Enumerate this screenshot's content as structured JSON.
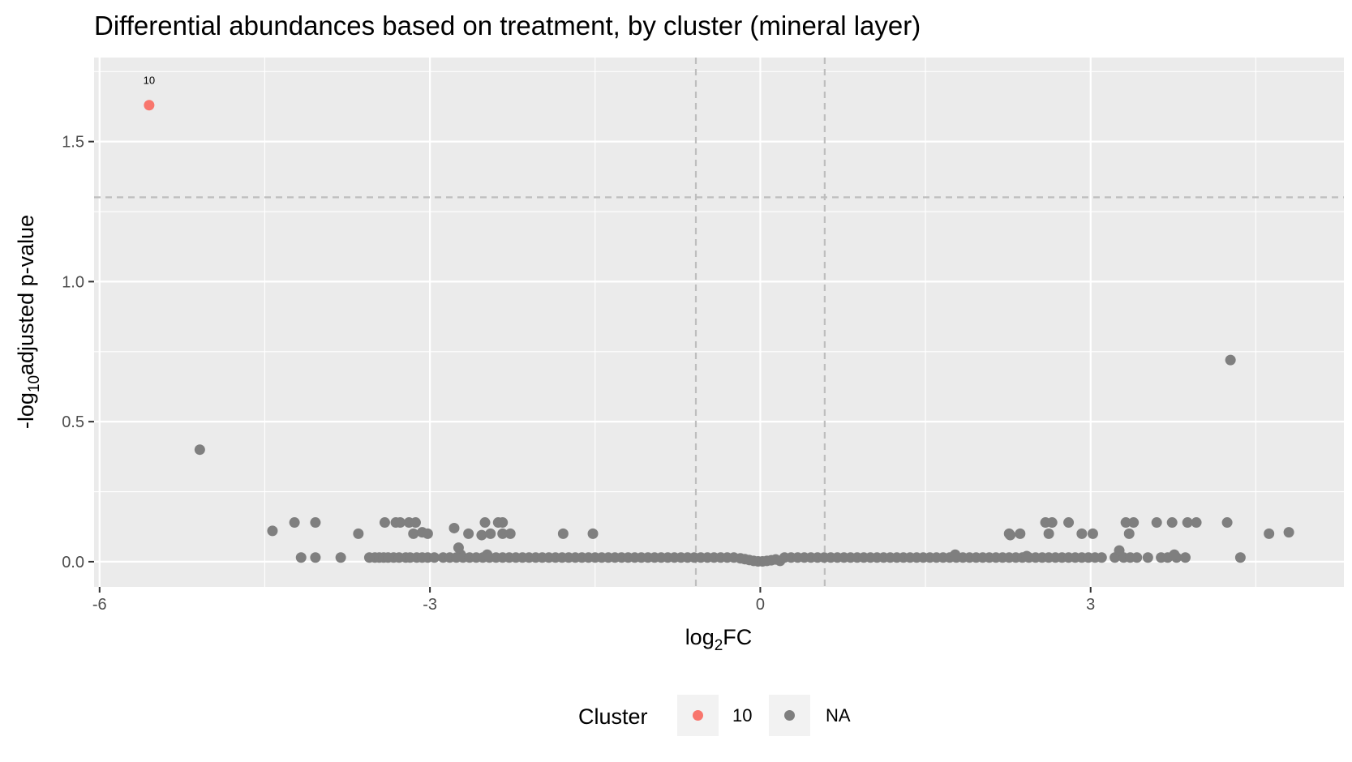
{
  "chart_data": {
    "type": "scatter",
    "title": "Differential abundances based on treatment, by cluster (mineral layer)",
    "xlabel": {
      "prefix": "log",
      "sub": "2",
      "suffix": "FC"
    },
    "ylabel": {
      "prefix": "-log",
      "sub": "10",
      "suffix": "adjusted p-value"
    },
    "xlim": [
      -6.05,
      5.3
    ],
    "ylim": [
      -0.09,
      1.8
    ],
    "x_ticks": [
      -6,
      -3,
      0,
      3
    ],
    "x_tick_labels": [
      "-6",
      "-3",
      "0",
      "3"
    ],
    "y_ticks": [
      0,
      0.5,
      1,
      1.5
    ],
    "y_tick_labels": [
      "0.0",
      "0.5",
      "1.0",
      "1.5"
    ],
    "grid": true,
    "reference_lines": {
      "x": [
        -0.585,
        0.585
      ],
      "y": [
        1.301
      ]
    },
    "legend": {
      "title": "Cluster",
      "position": "bottom",
      "entries": [
        {
          "label": "10",
          "color": "#F8766D"
        },
        {
          "label": "NA",
          "color": "#7F7F7F"
        }
      ]
    },
    "series": [
      {
        "name": "10",
        "color": "#F8766D",
        "points": [
          {
            "x": -5.55,
            "y": 1.63,
            "label": "10"
          }
        ]
      },
      {
        "name": "NA",
        "color": "#7F7F7F",
        "points": [
          [
            -5.09,
            0.4
          ],
          [
            4.27,
            0.72
          ],
          [
            -4.43,
            0.11
          ],
          [
            -4.23,
            0.14
          ],
          [
            -4.04,
            0.14
          ],
          [
            -4.17,
            0.015
          ],
          [
            -4.04,
            0.015
          ],
          [
            -3.81,
            0.015
          ],
          [
            -3.65,
            0.1
          ],
          [
            -3.41,
            0.14
          ],
          [
            -3.31,
            0.14
          ],
          [
            -3.27,
            0.14
          ],
          [
            -3.19,
            0.14
          ],
          [
            -3.13,
            0.14
          ],
          [
            -3.15,
            0.1
          ],
          [
            -3.07,
            0.105
          ],
          [
            -3.02,
            0.1
          ],
          [
            -2.78,
            0.12
          ],
          [
            -2.74,
            0.05
          ],
          [
            -2.65,
            0.1
          ],
          [
            -2.53,
            0.095
          ],
          [
            -2.5,
            0.14
          ],
          [
            -2.45,
            0.1
          ],
          [
            -2.38,
            0.14
          ],
          [
            -2.34,
            0.14
          ],
          [
            -2.34,
            0.1
          ],
          [
            -2.27,
            0.1
          ],
          [
            -1.79,
            0.1
          ],
          [
            -1.52,
            0.1
          ],
          [
            -2.72,
            0.025
          ],
          [
            -2.48,
            0.025
          ],
          [
            -3.55,
            0.015
          ],
          [
            -3.5,
            0.015
          ],
          [
            -3.46,
            0.015
          ],
          [
            -3.42,
            0.015
          ],
          [
            -3.38,
            0.015
          ],
          [
            -3.33,
            0.015
          ],
          [
            -3.28,
            0.015
          ],
          [
            -3.22,
            0.015
          ],
          [
            -3.18,
            0.015
          ],
          [
            -3.12,
            0.015
          ],
          [
            -3.07,
            0.015
          ],
          [
            -3.02,
            0.015
          ],
          [
            -2.96,
            0.015
          ],
          [
            -2.88,
            0.015
          ],
          [
            -2.82,
            0.015
          ],
          [
            -2.76,
            0.015
          ],
          [
            -2.7,
            0.015
          ],
          [
            -2.64,
            0.015
          ],
          [
            -2.58,
            0.015
          ],
          [
            -2.52,
            0.015
          ],
          [
            -2.46,
            0.015
          ],
          [
            -2.4,
            0.015
          ],
          [
            -2.34,
            0.015
          ],
          [
            -2.28,
            0.015
          ],
          [
            -2.22,
            0.015
          ],
          [
            -2.16,
            0.015
          ],
          [
            -2.1,
            0.015
          ],
          [
            -2.04,
            0.015
          ],
          [
            -1.98,
            0.015
          ],
          [
            -1.92,
            0.015
          ],
          [
            -1.86,
            0.015
          ],
          [
            -1.8,
            0.015
          ],
          [
            -1.74,
            0.015
          ],
          [
            -1.68,
            0.015
          ],
          [
            -1.62,
            0.015
          ],
          [
            -1.56,
            0.015
          ],
          [
            -1.5,
            0.015
          ],
          [
            -1.44,
            0.015
          ],
          [
            -1.38,
            0.015
          ],
          [
            -1.32,
            0.015
          ],
          [
            -1.26,
            0.015
          ],
          [
            -1.2,
            0.015
          ],
          [
            -1.14,
            0.015
          ],
          [
            -1.08,
            0.015
          ],
          [
            -1.02,
            0.015
          ],
          [
            -0.96,
            0.015
          ],
          [
            -0.9,
            0.015
          ],
          [
            -0.84,
            0.015
          ],
          [
            -0.78,
            0.015
          ],
          [
            -0.72,
            0.015
          ],
          [
            -0.66,
            0.015
          ],
          [
            -0.6,
            0.015
          ],
          [
            -0.54,
            0.015
          ],
          [
            -0.48,
            0.015
          ],
          [
            -0.42,
            0.015
          ],
          [
            -0.36,
            0.015
          ],
          [
            -0.3,
            0.015
          ],
          [
            -0.24,
            0.015
          ],
          [
            -0.18,
            0.012
          ],
          [
            -0.14,
            0.009
          ],
          [
            -0.1,
            0.006
          ],
          [
            -0.06,
            0.003
          ],
          [
            -0.02,
            0.001
          ],
          [
            0.02,
            0.001
          ],
          [
            0.06,
            0.003
          ],
          [
            0.1,
            0.005
          ],
          [
            0.14,
            0.008
          ],
          [
            0.18,
            0.003
          ],
          [
            0.22,
            0.015
          ],
          [
            0.28,
            0.015
          ],
          [
            0.34,
            0.015
          ],
          [
            0.4,
            0.015
          ],
          [
            0.46,
            0.015
          ],
          [
            0.52,
            0.015
          ],
          [
            0.58,
            0.015
          ],
          [
            0.64,
            0.015
          ],
          [
            0.7,
            0.015
          ],
          [
            0.76,
            0.015
          ],
          [
            0.82,
            0.015
          ],
          [
            0.88,
            0.015
          ],
          [
            0.94,
            0.015
          ],
          [
            1.0,
            0.015
          ],
          [
            1.06,
            0.015
          ],
          [
            1.12,
            0.015
          ],
          [
            1.18,
            0.015
          ],
          [
            1.24,
            0.015
          ],
          [
            1.3,
            0.015
          ],
          [
            1.36,
            0.015
          ],
          [
            1.42,
            0.015
          ],
          [
            1.48,
            0.015
          ],
          [
            1.54,
            0.015
          ],
          [
            1.6,
            0.015
          ],
          [
            1.66,
            0.015
          ],
          [
            1.72,
            0.015
          ],
          [
            1.78,
            0.015
          ],
          [
            1.84,
            0.015
          ],
          [
            1.9,
            0.015
          ],
          [
            1.96,
            0.015
          ],
          [
            2.02,
            0.015
          ],
          [
            2.08,
            0.015
          ],
          [
            2.14,
            0.015
          ],
          [
            2.2,
            0.015
          ],
          [
            2.26,
            0.015
          ],
          [
            2.32,
            0.015
          ],
          [
            2.38,
            0.015
          ],
          [
            2.44,
            0.015
          ],
          [
            2.5,
            0.015
          ],
          [
            2.56,
            0.015
          ],
          [
            2.62,
            0.015
          ],
          [
            2.68,
            0.015
          ],
          [
            2.74,
            0.015
          ],
          [
            2.8,
            0.015
          ],
          [
            2.86,
            0.015
          ],
          [
            2.92,
            0.015
          ],
          [
            2.98,
            0.015
          ],
          [
            3.04,
            0.015
          ],
          [
            3.1,
            0.015
          ],
          [
            3.22,
            0.015
          ],
          [
            3.3,
            0.015
          ],
          [
            3.36,
            0.015
          ],
          [
            3.42,
            0.015
          ],
          [
            3.52,
            0.015
          ],
          [
            3.64,
            0.015
          ],
          [
            3.7,
            0.015
          ],
          [
            3.78,
            0.015
          ],
          [
            3.86,
            0.015
          ],
          [
            4.36,
            0.015
          ],
          [
            1.77,
            0.025
          ],
          [
            2.42,
            0.02
          ],
          [
            3.26,
            0.04
          ],
          [
            3.76,
            0.025
          ],
          [
            2.26,
            0.1
          ],
          [
            2.27,
            0.095
          ],
          [
            2.36,
            0.1
          ],
          [
            2.59,
            0.14
          ],
          [
            2.65,
            0.14
          ],
          [
            2.62,
            0.1
          ],
          [
            2.8,
            0.14
          ],
          [
            2.92,
            0.1
          ],
          [
            3.02,
            0.1
          ],
          [
            3.32,
            0.14
          ],
          [
            3.39,
            0.14
          ],
          [
            3.35,
            0.1
          ],
          [
            3.6,
            0.14
          ],
          [
            3.74,
            0.14
          ],
          [
            3.88,
            0.14
          ],
          [
            3.96,
            0.14
          ],
          [
            4.24,
            0.14
          ],
          [
            4.62,
            0.1
          ],
          [
            4.8,
            0.105
          ]
        ]
      }
    ]
  }
}
